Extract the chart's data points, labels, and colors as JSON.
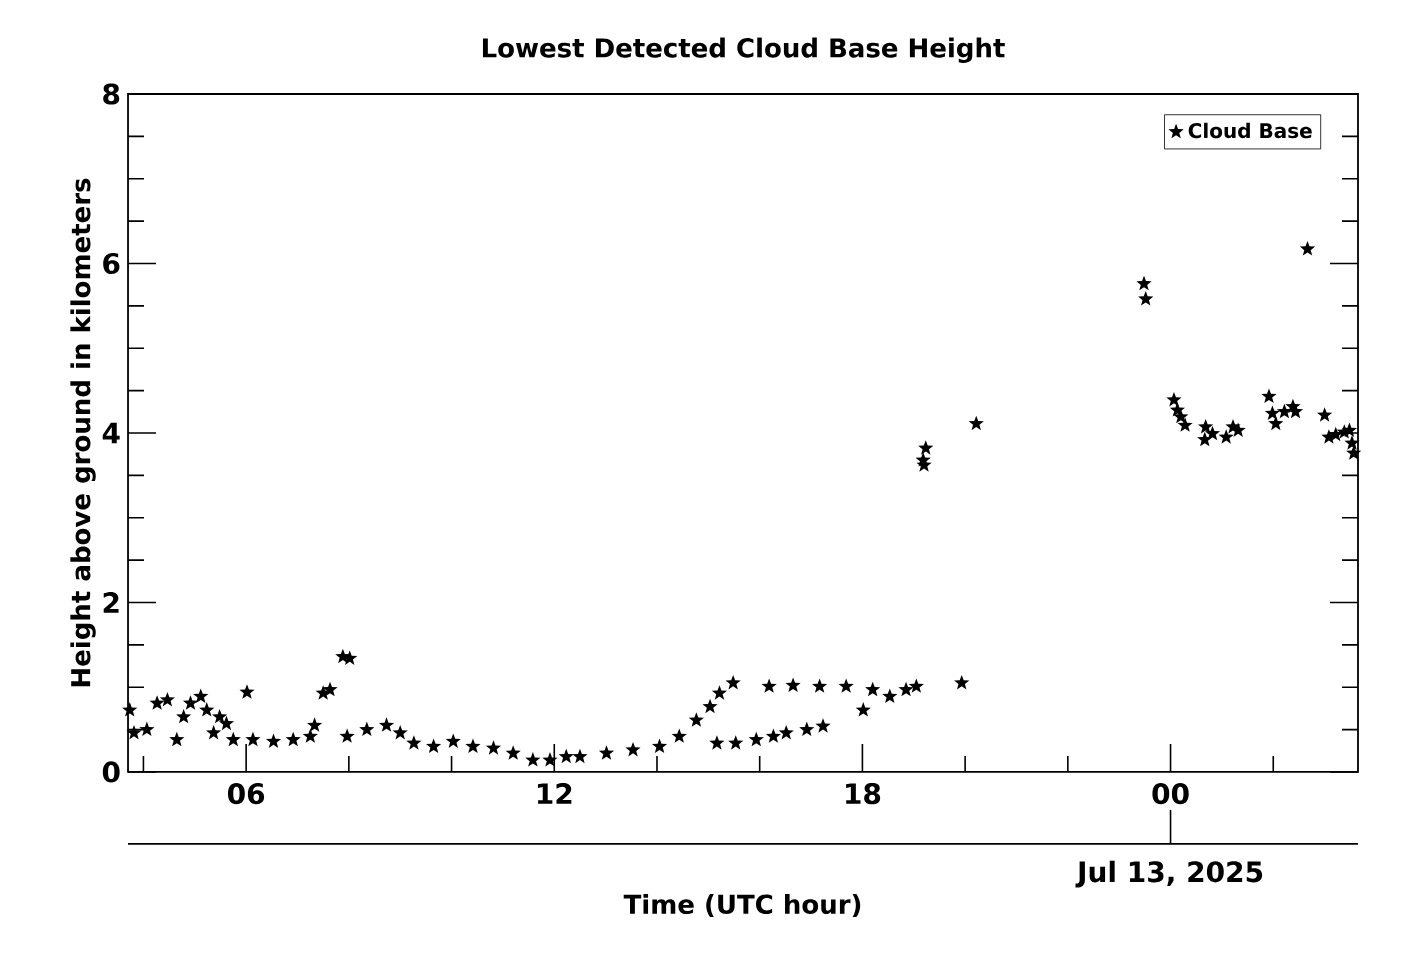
{
  "chart_data": {
    "type": "scatter",
    "title": "Lowest Detected Cloud Base Height",
    "xlabel": "Time (UTC hour)",
    "ylabel": "Height above ground in kilometers",
    "x": [
      "2025-07-12T03:44",
      "2025-07-12T03:49",
      "2025-07-12T04:04",
      "2025-07-12T04:16",
      "2025-07-12T04:28",
      "2025-07-12T04:39",
      "2025-07-12T04:47",
      "2025-07-12T04:55",
      "2025-07-12T05:07",
      "2025-07-12T05:14",
      "2025-07-12T05:22",
      "2025-07-12T05:29",
      "2025-07-12T05:37",
      "2025-07-12T05:45",
      "2025-07-12T06:01",
      "2025-07-12T06:08",
      "2025-07-12T06:32",
      "2025-07-12T06:55",
      "2025-07-12T07:15",
      "2025-07-12T07:20",
      "2025-07-12T07:30",
      "2025-07-12T07:38",
      "2025-07-12T07:53",
      "2025-07-12T08:01",
      "2025-07-12T07:58",
      "2025-07-12T08:21",
      "2025-07-12T08:44",
      "2025-07-12T09:00",
      "2025-07-12T09:16",
      "2025-07-12T09:39",
      "2025-07-12T10:02",
      "2025-07-12T10:25",
      "2025-07-12T10:49",
      "2025-07-12T11:12",
      "2025-07-12T11:35",
      "2025-07-12T11:55",
      "2025-07-12T12:14",
      "2025-07-12T12:30",
      "2025-07-12T13:01",
      "2025-07-12T13:32",
      "2025-07-12T14:03",
      "2025-07-12T14:26",
      "2025-07-12T14:46",
      "2025-07-12T15:02",
      "2025-07-12T15:13",
      "2025-07-12T15:29",
      "2025-07-12T15:10",
      "2025-07-12T15:32",
      "2025-07-12T15:56",
      "2025-07-12T16:16",
      "2025-07-12T16:31",
      "2025-07-12T16:55",
      "2025-07-12T17:14",
      "2025-07-12T16:11",
      "2025-07-12T16:39",
      "2025-07-12T17:10",
      "2025-07-12T17:41",
      "2025-07-12T18:12",
      "2025-07-12T18:32",
      "2025-07-12T18:51",
      "2025-07-12T19:03",
      "2025-07-12T18:01",
      "2025-07-12T19:56",
      "2025-07-12T19:11",
      "2025-07-12T19:14",
      "2025-07-12T19:12",
      "2025-07-12T20:13",
      "2025-07-12T23:29",
      "2025-07-12T23:31",
      "2025-07-13T00:04",
      "2025-07-13T00:08",
      "2025-07-13T00:12",
      "2025-07-13T00:17",
      "2025-07-13T00:41",
      "2025-07-13T00:40",
      "2025-07-13T00:49",
      "2025-07-13T01:05",
      "2025-07-13T01:13",
      "2025-07-13T01:19",
      "2025-07-13T01:55",
      "2025-07-13T01:59",
      "2025-07-13T02:03",
      "2025-07-13T02:13",
      "2025-07-13T02:23",
      "2025-07-13T02:26",
      "2025-07-13T02:40",
      "2025-07-13T03:00",
      "2025-07-13T03:05",
      "2025-07-13T03:13",
      "2025-07-13T03:23",
      "2025-07-13T03:29",
      "2025-07-13T03:32",
      "2025-07-13T03:34"
    ],
    "series": [
      {
        "name": "Cloud Base",
        "color": "#000000",
        "values": [
          0.73,
          0.46,
          0.5,
          0.81,
          0.85,
          0.38,
          0.65,
          0.81,
          0.89,
          0.73,
          0.46,
          0.65,
          0.57,
          0.38,
          0.94,
          0.38,
          0.36,
          0.38,
          0.42,
          0.55,
          0.93,
          0.97,
          1.36,
          1.34,
          0.42,
          0.5,
          0.55,
          0.46,
          0.34,
          0.3,
          0.36,
          0.3,
          0.28,
          0.22,
          0.14,
          0.14,
          0.18,
          0.18,
          0.22,
          0.26,
          0.3,
          0.42,
          0.61,
          0.77,
          0.93,
          1.05,
          0.34,
          0.34,
          0.38,
          0.42,
          0.46,
          0.5,
          0.54,
          1.01,
          1.02,
          1.01,
          1.01,
          0.97,
          0.89,
          0.97,
          1.01,
          0.73,
          1.05,
          3.68,
          3.82,
          3.62,
          4.11,
          5.76,
          5.58,
          4.39,
          4.27,
          4.19,
          4.09,
          4.07,
          3.92,
          3.99,
          3.95,
          4.07,
          4.03,
          4.43,
          4.23,
          4.11,
          4.25,
          4.31,
          4.25,
          6.17,
          4.21,
          3.95,
          3.98,
          4.01,
          4.03,
          3.88,
          3.76
        ]
      }
    ],
    "xlim": [
      "2025-07-12T03:42",
      "2025-07-13T03:39"
    ],
    "xticks": [
      {
        "value": "2025-07-12T04:00",
        "label": null
      },
      {
        "value": "2025-07-12T06:00",
        "label": "06"
      },
      {
        "value": "2025-07-12T08:00",
        "label": null
      },
      {
        "value": "2025-07-12T10:00",
        "label": null
      },
      {
        "value": "2025-07-12T12:00",
        "label": "12"
      },
      {
        "value": "2025-07-12T14:00",
        "label": null
      },
      {
        "value": "2025-07-12T16:00",
        "label": null
      },
      {
        "value": "2025-07-12T18:00",
        "label": "18"
      },
      {
        "value": "2025-07-12T20:00",
        "label": null
      },
      {
        "value": "2025-07-12T22:00",
        "label": null
      },
      {
        "value": "2025-07-13T00:00",
        "label": "00"
      },
      {
        "value": "2025-07-13T02:00",
        "label": null
      }
    ],
    "ylim": [
      0,
      8
    ],
    "yticks": [
      0,
      {
        "value": 0.5,
        "label": null
      },
      {
        "value": 1,
        "label": null
      },
      {
        "value": 1.5,
        "label": null
      },
      2,
      {
        "value": 2.5,
        "label": null
      },
      {
        "value": 3,
        "label": null
      },
      {
        "value": 3.5,
        "label": null
      },
      4,
      {
        "value": 4.5,
        "label": null
      },
      {
        "value": 5,
        "label": null
      },
      {
        "value": 5.5,
        "label": null
      },
      6,
      {
        "value": 6.5,
        "label": null
      },
      {
        "value": 7,
        "label": null
      },
      {
        "value": 7.5,
        "label": null
      },
      8
    ],
    "annotations": [
      {
        "text": "Jul 13, 2025",
        "x": "2025-07-13T00:00"
      }
    ],
    "marker": "star",
    "legend": "top right",
    "grid": false
  }
}
